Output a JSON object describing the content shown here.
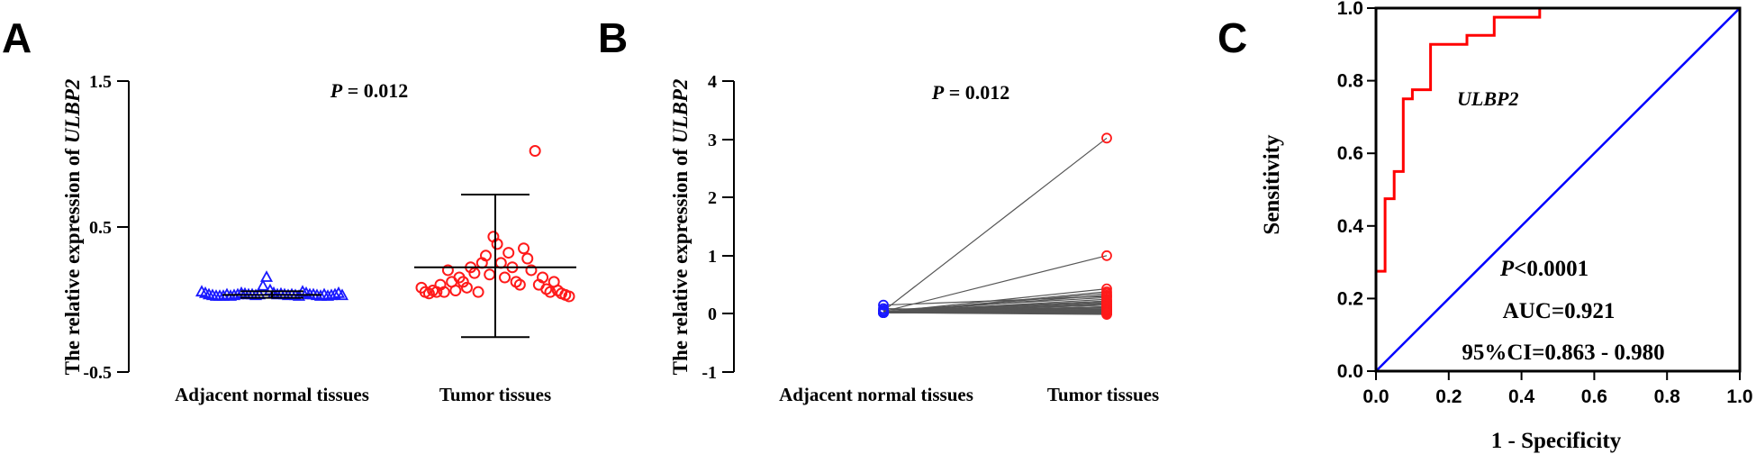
{
  "colors": {
    "normal": "#1a1aff",
    "tumor": "#ff1a1a",
    "pair_line": "#555555",
    "roc": "#ff0000",
    "diagonal": "#0000ff"
  },
  "chart_data": [
    {
      "panel": "A",
      "type": "scatter",
      "annotation_italic": "P",
      "annotation_rest": " = 0.012",
      "ylabel_prefix": "The relative  expression of ",
      "ylabel_gene": "ULBP2",
      "ylim": [
        -0.5,
        1.5
      ],
      "yticks": [
        "1.5",
        "0.5",
        "-0.5"
      ],
      "ytick_values": [
        1.5,
        0.5,
        -0.5
      ],
      "categories": [
        "Adjacent normal tissues",
        "Tumor tissues"
      ],
      "series": [
        {
          "marker": "triangle",
          "mean": 0.03,
          "sd_low": 0.01,
          "sd_high": 0.055,
          "values": [
            0.05,
            0.04,
            0.03,
            0.025,
            0.02,
            0.02,
            0.02,
            0.03,
            0.02,
            0.025,
            0.03,
            0.04,
            0.035,
            0.03,
            0.03,
            0.025,
            0.03,
            0.09,
            0.15,
            0.06,
            0.04,
            0.03,
            0.035,
            0.03,
            0.025,
            0.03,
            0.025,
            0.02,
            0.05,
            0.04,
            0.03,
            0.03,
            0.025,
            0.02,
            0.03,
            0.02,
            0.025,
            0.03,
            0.04,
            0.025
          ]
        },
        {
          "marker": "circle",
          "mean": 0.22,
          "sd_low": -0.26,
          "sd_high": 0.72,
          "values": [
            0.08,
            0.05,
            0.04,
            0.06,
            0.05,
            0.1,
            0.05,
            0.2,
            0.12,
            0.06,
            0.15,
            0.12,
            0.08,
            0.22,
            0.18,
            0.05,
            0.25,
            0.3,
            0.17,
            0.43,
            0.38,
            0.25,
            0.15,
            0.32,
            0.22,
            0.12,
            0.1,
            0.35,
            0.28,
            0.2,
            1.02,
            0.1,
            0.15,
            0.07,
            0.05,
            0.12,
            0.06,
            0.04,
            0.03,
            0.02
          ]
        }
      ]
    },
    {
      "panel": "B",
      "type": "line",
      "annotation_italic": "P",
      "annotation_rest": " = 0.012",
      "ylabel_prefix": "The relative  expression of ",
      "ylabel_gene": "ULBP2",
      "ylim": [
        -1,
        4
      ],
      "yticks": [
        "4",
        "3",
        "2",
        "1",
        "0",
        "-1"
      ],
      "ytick_values": [
        4,
        3,
        2,
        1,
        0,
        -1
      ],
      "categories": [
        "Adjacent normal tissues",
        "Tumor tissues"
      ],
      "pairs": [
        [
          0.05,
          3.02
        ],
        [
          0.04,
          1.0
        ],
        [
          0.03,
          0.43
        ],
        [
          0.02,
          0.38
        ],
        [
          0.03,
          0.35
        ],
        [
          0.02,
          0.32
        ],
        [
          0.15,
          0.3
        ],
        [
          0.06,
          0.28
        ],
        [
          0.03,
          0.25
        ],
        [
          0.04,
          0.22
        ],
        [
          0.02,
          0.22
        ],
        [
          0.03,
          0.2
        ],
        [
          0.02,
          0.18
        ],
        [
          0.03,
          0.17
        ],
        [
          0.02,
          0.15
        ],
        [
          0.03,
          0.15
        ],
        [
          0.02,
          0.12
        ],
        [
          0.02,
          0.12
        ],
        [
          0.03,
          0.12
        ],
        [
          0.02,
          0.1
        ],
        [
          0.03,
          0.1
        ],
        [
          0.02,
          0.08
        ],
        [
          0.02,
          0.08
        ],
        [
          0.03,
          0.07
        ],
        [
          0.04,
          0.06
        ],
        [
          0.02,
          0.06
        ],
        [
          0.03,
          0.05
        ],
        [
          0.02,
          0.05
        ],
        [
          0.03,
          0.05
        ],
        [
          0.02,
          0.04
        ],
        [
          0.03,
          0.04
        ],
        [
          0.02,
          0.03
        ],
        [
          0.09,
          0.03
        ],
        [
          0.02,
          0.02
        ],
        [
          0.03,
          0.02
        ],
        [
          0.02,
          0.01
        ],
        [
          0.03,
          0.01
        ],
        [
          0.02,
          0.0
        ],
        [
          0.03,
          0.0
        ],
        [
          0.02,
          -0.01
        ]
      ]
    },
    {
      "panel": "C",
      "type": "line",
      "xlabel": "1 - Specificity",
      "ylabel": "Sensitivity",
      "xlim": [
        0,
        1
      ],
      "ylim": [
        0,
        1
      ],
      "xticks": [
        "0.0",
        "0.2",
        "0.4",
        "0.6",
        "0.8",
        "1.0"
      ],
      "yticks": [
        "0.0",
        "0.2",
        "0.4",
        "0.6",
        "0.8",
        "1.0"
      ],
      "tick_values": [
        0,
        0.2,
        0.4,
        0.6,
        0.8,
        1.0
      ],
      "series_label": "ULBP2",
      "stat_p_italic": "P",
      "stat_p_rest": "<0.0001",
      "stat_auc": "AUC=0.921",
      "stat_ci": "95%CI=0.863 - 0.980",
      "roc_x": [
        0,
        0,
        0.025,
        0.025,
        0.05,
        0.05,
        0.075,
        0.075,
        0.1,
        0.1,
        0.15,
        0.15,
        0.25,
        0.25,
        0.325,
        0.325,
        0.45,
        0.45,
        1.0
      ],
      "roc_y": [
        0,
        0.275,
        0.275,
        0.475,
        0.475,
        0.55,
        0.55,
        0.75,
        0.75,
        0.775,
        0.775,
        0.9,
        0.9,
        0.925,
        0.925,
        0.975,
        0.975,
        1.0,
        1.0
      ]
    }
  ]
}
